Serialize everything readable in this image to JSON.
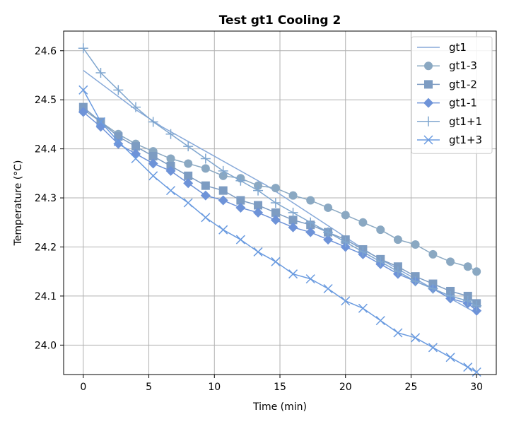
{
  "chart_data": {
    "type": "line",
    "title": "Test gt1 Cooling 2",
    "xlabel": "Time (min)",
    "ylabel": "Temperature (°C)",
    "xlim": [
      -1.5,
      31.5
    ],
    "ylim": [
      23.94,
      24.64
    ],
    "xticks": [
      0,
      5,
      10,
      15,
      20,
      25,
      30
    ],
    "yticks": [
      24.0,
      24.1,
      24.2,
      24.3,
      24.4,
      24.5,
      24.6
    ],
    "grid": true,
    "legend_position": "top-right",
    "series": [
      {
        "name": "gt1",
        "marker": "none",
        "color": "#87a9d9",
        "x": [
          0,
          2,
          4,
          6,
          8,
          10,
          12,
          14,
          16,
          18,
          20,
          22,
          24,
          26,
          28,
          30
        ],
        "y": [
          24.56,
          24.52,
          24.48,
          24.445,
          24.415,
          24.385,
          24.355,
          24.325,
          24.29,
          24.255,
          24.22,
          24.185,
          24.155,
          24.125,
          24.095,
          24.065
        ]
      },
      {
        "name": "gt1-3",
        "marker": "circle",
        "color": "#8aa8c2",
        "x": [
          0,
          1.33,
          2.67,
          4,
          5.33,
          6.67,
          8,
          9.33,
          10.67,
          12,
          13.33,
          14.67,
          16,
          17.33,
          18.67,
          20,
          21.33,
          22.67,
          24,
          25.33,
          26.67,
          28,
          29.33,
          30
        ],
        "y": [
          24.48,
          24.455,
          24.43,
          24.41,
          24.395,
          24.38,
          24.37,
          24.36,
          24.345,
          24.34,
          24.325,
          24.32,
          24.305,
          24.295,
          24.28,
          24.265,
          24.25,
          24.235,
          24.215,
          24.205,
          24.185,
          24.17,
          24.16,
          24.15
        ]
      },
      {
        "name": "gt1-2",
        "marker": "square",
        "color": "#7d9cc2",
        "x": [
          0,
          1.33,
          2.67,
          4,
          5.33,
          6.67,
          8,
          9.33,
          10.67,
          12,
          13.33,
          14.67,
          16,
          17.33,
          18.67,
          20,
          21.33,
          22.67,
          24,
          25.33,
          26.67,
          28,
          29.33,
          30
        ],
        "y": [
          24.485,
          24.455,
          24.425,
          24.405,
          24.385,
          24.365,
          24.345,
          24.325,
          24.315,
          24.295,
          24.285,
          24.27,
          24.255,
          24.245,
          24.23,
          24.215,
          24.195,
          24.175,
          24.16,
          24.14,
          24.125,
          24.11,
          24.1,
          24.085
        ]
      },
      {
        "name": "gt1-1",
        "marker": "diamond",
        "color": "#6e93d8",
        "x": [
          0,
          1.33,
          2.67,
          4,
          5.33,
          6.67,
          8,
          9.33,
          10.67,
          12,
          13.33,
          14.67,
          16,
          17.33,
          18.67,
          20,
          21.33,
          22.67,
          24,
          25.33,
          26.67,
          28,
          29.33,
          30
        ],
        "y": [
          24.475,
          24.445,
          24.41,
          24.39,
          24.37,
          24.355,
          24.33,
          24.305,
          24.295,
          24.28,
          24.27,
          24.255,
          24.24,
          24.23,
          24.215,
          24.2,
          24.185,
          24.165,
          24.145,
          24.13,
          24.115,
          24.095,
          24.085,
          24.07
        ]
      },
      {
        "name": "gt1+1",
        "marker": "plus",
        "color": "#7fa6cf",
        "x": [
          0,
          1.33,
          2.67,
          4,
          5.33,
          6.67,
          8,
          9.33,
          10.67,
          12,
          13.33,
          14.67,
          16,
          17.33,
          18.67,
          20,
          21.33,
          22.67,
          24,
          25.33,
          26.67,
          28,
          29.33,
          30
        ],
        "y": [
          24.605,
          24.555,
          24.52,
          24.485,
          24.455,
          24.43,
          24.405,
          24.38,
          24.355,
          24.335,
          24.315,
          24.29,
          24.27,
          24.25,
          24.23,
          24.21,
          24.19,
          24.17,
          24.15,
          24.13,
          24.115,
          24.1,
          24.09,
          24.08
        ]
      },
      {
        "name": "gt1+3",
        "marker": "x",
        "color": "#6a9be0",
        "x": [
          0,
          1.33,
          2.67,
          4,
          5.33,
          6.67,
          8,
          9.33,
          10.67,
          12,
          13.33,
          14.67,
          16,
          17.33,
          18.67,
          20,
          21.33,
          22.67,
          24,
          25.33,
          26.67,
          28,
          29.33,
          30
        ],
        "y": [
          24.52,
          24.455,
          24.415,
          24.38,
          24.345,
          24.315,
          24.29,
          24.26,
          24.235,
          24.215,
          24.19,
          24.17,
          24.145,
          24.135,
          24.115,
          24.09,
          24.075,
          24.05,
          24.025,
          24.015,
          23.995,
          23.975,
          23.955,
          23.945
        ]
      }
    ]
  }
}
